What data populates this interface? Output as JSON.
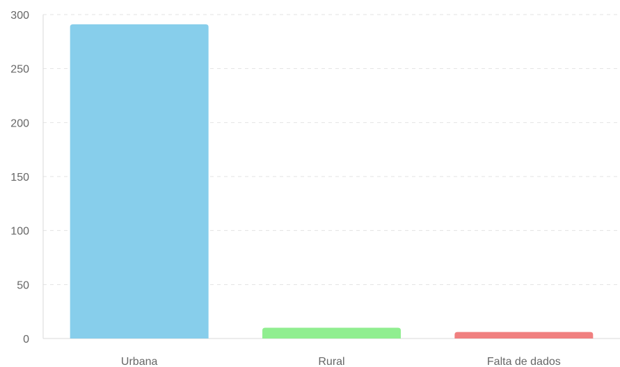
{
  "chart_data": {
    "type": "bar",
    "categories": [
      "Urbana",
      "Rural",
      "Falta de dados"
    ],
    "values": [
      291,
      10,
      6
    ],
    "colors": [
      "#87CEEB",
      "#90EE90",
      "#F08080"
    ],
    "title": "",
    "xlabel": "",
    "ylabel": "",
    "ylim": [
      0,
      300
    ],
    "yticks": [
      0,
      50,
      100,
      150,
      200,
      250,
      300
    ],
    "grid": true,
    "legend": "none"
  }
}
